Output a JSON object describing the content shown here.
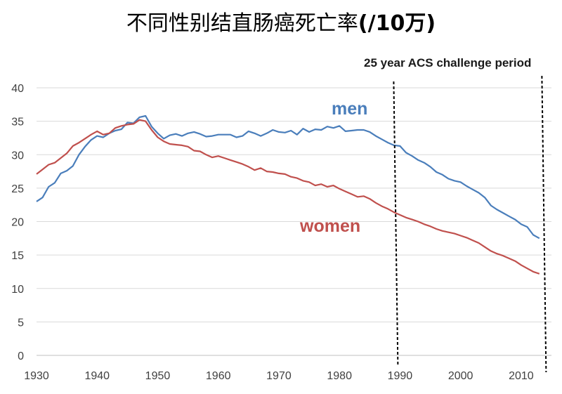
{
  "chart_data": {
    "type": "line",
    "title": "不同性别结直肠癌死亡率",
    "title_suffix": "(/10万)",
    "xlabel": "",
    "ylabel": "",
    "xlim": [
      1930,
      2015
    ],
    "ylim": [
      0,
      40
    ],
    "x_ticks": [
      1930,
      1940,
      1950,
      1960,
      1970,
      1980,
      1990,
      2000,
      2010
    ],
    "y_ticks": [
      0,
      5,
      10,
      15,
      20,
      25,
      30,
      35,
      40
    ],
    "grid": "horizontal",
    "annotation": {
      "text": "25 year ACS challenge period",
      "x_start": 1990,
      "x_end": 2014
    },
    "series": [
      {
        "name": "men",
        "color": "#4a7ebb",
        "x": [
          1930,
          1931,
          1932,
          1933,
          1934,
          1935,
          1936,
          1937,
          1938,
          1939,
          1940,
          1941,
          1942,
          1943,
          1944,
          1945,
          1946,
          1947,
          1948,
          1949,
          1950,
          1951,
          1952,
          1953,
          1954,
          1955,
          1956,
          1957,
          1958,
          1959,
          1960,
          1961,
          1962,
          1963,
          1964,
          1965,
          1966,
          1967,
          1968,
          1969,
          1970,
          1971,
          1972,
          1973,
          1974,
          1975,
          1976,
          1977,
          1978,
          1979,
          1980,
          1981,
          1982,
          1983,
          1984,
          1985,
          1986,
          1987,
          1988,
          1989,
          1990,
          1991,
          1992,
          1993,
          1994,
          1995,
          1996,
          1997,
          1998,
          1999,
          2000,
          2001,
          2002,
          2003,
          2004,
          2005,
          2006,
          2007,
          2008,
          2009,
          2010,
          2011,
          2012,
          2013
        ],
        "values": [
          23.0,
          23.6,
          25.2,
          25.8,
          27.2,
          27.6,
          28.3,
          30.0,
          31.2,
          32.2,
          32.8,
          32.6,
          33.2,
          33.6,
          33.8,
          34.8,
          34.7,
          35.6,
          35.8,
          34.2,
          33.2,
          32.4,
          32.9,
          33.1,
          32.8,
          33.2,
          33.4,
          33.1,
          32.7,
          32.8,
          33.0,
          33.0,
          33.0,
          32.6,
          32.8,
          33.5,
          33.2,
          32.8,
          33.2,
          33.7,
          33.4,
          33.3,
          33.6,
          33.0,
          33.9,
          33.4,
          33.8,
          33.7,
          34.2,
          34.0,
          34.3,
          33.5,
          33.6,
          33.7,
          33.7,
          33.4,
          32.8,
          32.3,
          31.8,
          31.4,
          31.3,
          30.3,
          29.8,
          29.2,
          28.8,
          28.2,
          27.4,
          27.0,
          26.4,
          26.1,
          25.9,
          25.3,
          24.8,
          24.3,
          23.6,
          22.4,
          21.8,
          21.3,
          20.8,
          20.3,
          19.6,
          19.2,
          18.0,
          17.5
        ]
      },
      {
        "name": "women",
        "color": "#c0504d",
        "x": [
          1930,
          1931,
          1932,
          1933,
          1934,
          1935,
          1936,
          1937,
          1938,
          1939,
          1940,
          1941,
          1942,
          1943,
          1944,
          1945,
          1946,
          1947,
          1948,
          1949,
          1950,
          1951,
          1952,
          1953,
          1954,
          1955,
          1956,
          1957,
          1958,
          1959,
          1960,
          1961,
          1962,
          1963,
          1964,
          1965,
          1966,
          1967,
          1968,
          1969,
          1970,
          1971,
          1972,
          1973,
          1974,
          1975,
          1976,
          1977,
          1978,
          1979,
          1980,
          1981,
          1982,
          1983,
          1984,
          1985,
          1986,
          1987,
          1988,
          1989,
          1990,
          1991,
          1992,
          1993,
          1994,
          1995,
          1996,
          1997,
          1998,
          1999,
          2000,
          2001,
          2002,
          2003,
          2004,
          2005,
          2006,
          2007,
          2008,
          2009,
          2010,
          2011,
          2012,
          2013
        ],
        "values": [
          27.1,
          27.8,
          28.5,
          28.8,
          29.5,
          30.2,
          31.3,
          31.8,
          32.4,
          33.0,
          33.5,
          33.0,
          33.2,
          34.0,
          34.3,
          34.5,
          34.6,
          35.2,
          35.0,
          33.7,
          32.6,
          32.0,
          31.6,
          31.5,
          31.4,
          31.2,
          30.6,
          30.5,
          30.0,
          29.6,
          29.8,
          29.5,
          29.2,
          28.9,
          28.6,
          28.2,
          27.7,
          28.0,
          27.5,
          27.4,
          27.2,
          27.1,
          26.7,
          26.5,
          26.1,
          25.9,
          25.4,
          25.6,
          25.2,
          25.4,
          24.9,
          24.5,
          24.1,
          23.7,
          23.8,
          23.4,
          22.8,
          22.3,
          21.9,
          21.4,
          21.0,
          20.6,
          20.3,
          20.0,
          19.6,
          19.3,
          18.9,
          18.6,
          18.4,
          18.2,
          17.9,
          17.6,
          17.2,
          16.8,
          16.2,
          15.6,
          15.2,
          14.9,
          14.5,
          14.1,
          13.5,
          13.0,
          12.5,
          12.2
        ]
      }
    ]
  }
}
